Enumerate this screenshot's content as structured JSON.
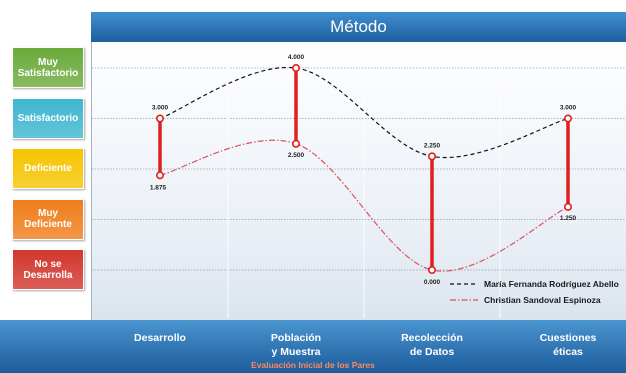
{
  "chart_data": {
    "type": "line",
    "title": "Método",
    "footer_title": "Evaluación Inicial de los Pares",
    "categories": [
      "Desarrollo",
      "Población\ny Muestra",
      "Recolección\nde Datos",
      "Cuestiones\néticas"
    ],
    "levels": [
      {
        "label": "Muy\nSatisfactorio",
        "value": 4,
        "color": "#6aaa3b"
      },
      {
        "label": "Satisfactorio",
        "value": 3,
        "color": "#3fb6cf"
      },
      {
        "label": "Deficiente",
        "value": 2,
        "color": "#f5c400"
      },
      {
        "label": "Muy\nDeficiente",
        "value": 1,
        "color": "#ef7d1a"
      },
      {
        "label": "No se\nDesarrolla",
        "value": 0,
        "color": "#d2362d"
      }
    ],
    "ylim": [
      0,
      4
    ],
    "series": [
      {
        "name": "María Fernanda Rodríguez Abello",
        "values": [
          3.0,
          4.0,
          2.25,
          3.0
        ],
        "labels": [
          "3.000",
          "4.000",
          "2.250",
          "3.000"
        ],
        "color": "#111111",
        "style": "dashed"
      },
      {
        "name": "Christian Sandoval Espinoza",
        "values": [
          1.875,
          2.5,
          0.0,
          1.25
        ],
        "labels": [
          "1.875",
          "2.500",
          "0.000",
          "1.250"
        ],
        "color": "#e05060",
        "style": "dashdot"
      }
    ],
    "connector_color": "#e02020",
    "legend_position": "bottom-right",
    "grid": true
  }
}
